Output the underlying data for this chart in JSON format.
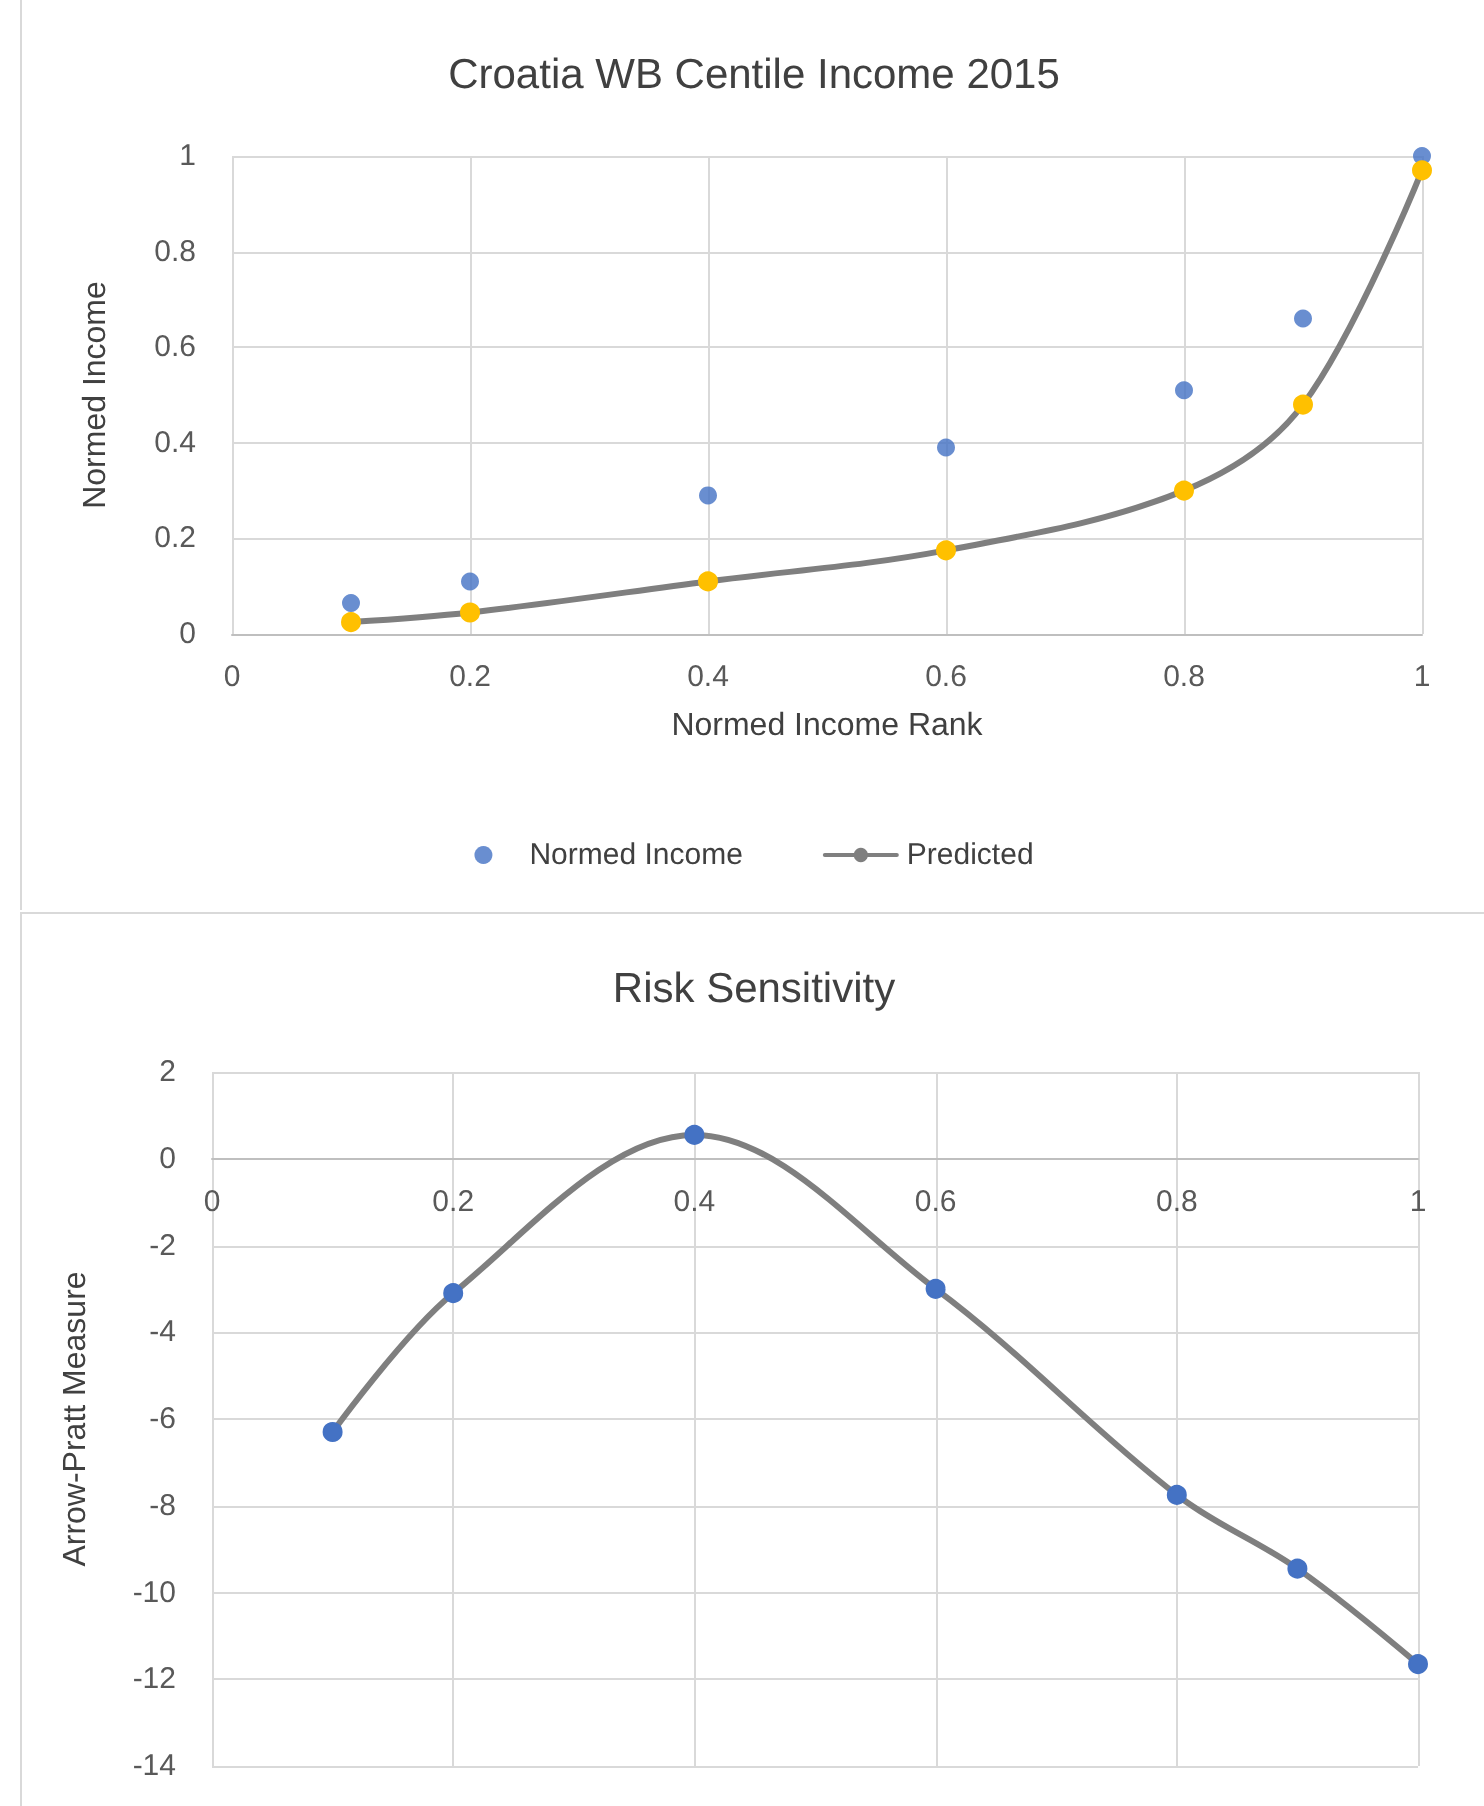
{
  "chart_data": [
    {
      "type": "line",
      "title": "Croatia WB Centile Income 2015",
      "xlabel": "Normed Income Rank",
      "ylabel": "Normed Income",
      "x": [
        0.1,
        0.2,
        0.4,
        0.6,
        0.8,
        0.9,
        1
      ],
      "xlim": [
        0,
        1
      ],
      "xticks": [
        0,
        0.2,
        0.4,
        0.6,
        0.8,
        1
      ],
      "ylim": [
        0,
        1
      ],
      "yticks": [
        0,
        0.2,
        0.4,
        0.6,
        0.8,
        1
      ],
      "grid": true,
      "legend": "bottom",
      "marker": "circle",
      "line_style": "solid",
      "series": [
        {
          "name": "Normed Income",
          "type": "scatter",
          "color": "#4472c4",
          "values": [
            0.065,
            0.11,
            0.29,
            0.39,
            0.51,
            0.66,
            1.0
          ]
        },
        {
          "name": "Predicted",
          "color": "#7f7f7f",
          "colors": [
            "#ffc000",
            "#ffc000",
            "#ffc000",
            "#ffc000",
            "#ffc000",
            "#ffc000",
            "#ffc000"
          ],
          "values": [
            0.025,
            0.045,
            0.11,
            0.175,
            0.3,
            0.48,
            0.97
          ]
        }
      ]
    },
    {
      "type": "line",
      "title": "Risk Sensitivity",
      "ylabel": "Arrow-Pratt Measure",
      "x": [
        0.1,
        0.2,
        0.4,
        0.6,
        0.8,
        0.9,
        1
      ],
      "xlim": [
        0,
        1
      ],
      "xticks": [
        0,
        0.2,
        0.4,
        0.6,
        0.8,
        1
      ],
      "ylim": [
        -14,
        2
      ],
      "yticks": [
        -14,
        -12,
        -10,
        -8,
        -6,
        -4,
        -2,
        0,
        2
      ],
      "grid": true,
      "legend": false,
      "marker": "circle",
      "line_style": "solid",
      "series": [
        {
          "color": "#7f7f7f",
          "colors": [
            "#4472c4",
            "#4472c4",
            "#4472c4",
            "#4472c4",
            "#4472c4",
            "#4472c4",
            "#4472c4"
          ],
          "values": [
            -6.3,
            -3.1,
            0.55,
            -3.0,
            -7.75,
            -9.45,
            -11.65
          ]
        }
      ]
    }
  ]
}
